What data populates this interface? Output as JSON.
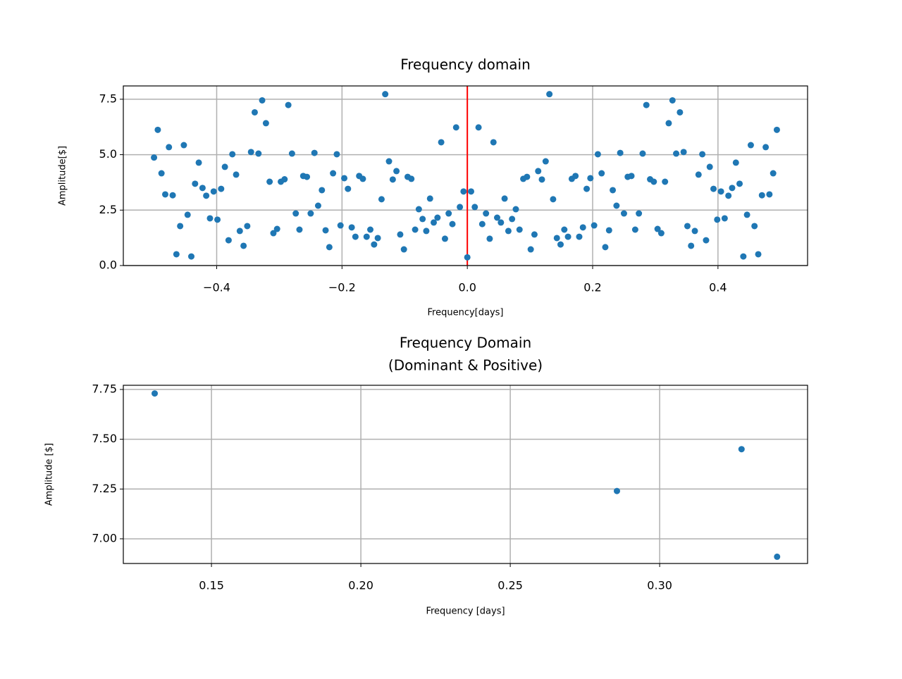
{
  "chart_data": [
    {
      "type": "scatter",
      "title": "Frequency domain",
      "xlabel": "Frequency[days]",
      "ylabel": "Amplitude[$]",
      "color": "#1f77b4",
      "grid": true,
      "vlines": [
        {
          "x": 0,
          "color": "#ff0000"
        }
      ],
      "xlim": [
        -0.549,
        0.543
      ],
      "ylim": [
        0,
        8.1
      ],
      "xticks": [
        {
          "value": -0.4,
          "label": "−0.4"
        },
        {
          "value": -0.2,
          "label": "−0.2"
        },
        {
          "value": 0,
          "label": "0.0"
        },
        0.2,
        0.4
      ],
      "yticks": [
        {
          "value": 0,
          "label": "0.0"
        },
        2.5,
        {
          "value": 5,
          "label": "5.0"
        },
        7.5
      ],
      "x": [
        -0.5,
        -0.494,
        -0.4881,
        -0.4821,
        -0.4762,
        -0.4702,
        -0.4643,
        -0.4583,
        -0.4524,
        -0.4464,
        -0.4405,
        -0.4345,
        -0.4286,
        -0.4226,
        -0.4167,
        -0.4107,
        -0.4048,
        -0.3988,
        -0.3929,
        -0.3869,
        -0.381,
        -0.375,
        -0.369,
        -0.3631,
        -0.3571,
        -0.3512,
        -0.3452,
        -0.3393,
        -0.3333,
        -0.3274,
        -0.3214,
        -0.3155,
        -0.3095,
        -0.3036,
        -0.2976,
        -0.2917,
        -0.2857,
        -0.2798,
        -0.2738,
        -0.2679,
        -0.2619,
        -0.256,
        -0.25,
        -0.244,
        -0.2381,
        -0.2321,
        -0.2262,
        -0.2202,
        -0.2143,
        -0.2083,
        -0.2024,
        -0.1964,
        -0.1905,
        -0.1845,
        -0.1786,
        -0.1726,
        -0.1667,
        -0.1607,
        -0.1548,
        -0.1488,
        -0.1429,
        -0.1369,
        -0.131,
        -0.125,
        -0.119,
        -0.1131,
        -0.1071,
        -0.1012,
        -0.0952,
        -0.0893,
        -0.0833,
        -0.0774,
        -0.0714,
        -0.0655,
        -0.0595,
        -0.0536,
        -0.0476,
        -0.0417,
        -0.0357,
        -0.0298,
        -0.0238,
        -0.0179,
        -0.0119,
        -0.006,
        0,
        0.006,
        0.0119,
        0.0179,
        0.0238,
        0.0298,
        0.0357,
        0.0417,
        0.0476,
        0.0536,
        0.0595,
        0.0655,
        0.0714,
        0.0774,
        0.0833,
        0.0893,
        0.0952,
        0.1012,
        0.1071,
        0.1131,
        0.119,
        0.125,
        0.131,
        0.1369,
        0.1429,
        0.1488,
        0.1548,
        0.1607,
        0.1667,
        0.1726,
        0.1786,
        0.1845,
        0.1905,
        0.1964,
        0.2024,
        0.2083,
        0.2143,
        0.2202,
        0.2262,
        0.2321,
        0.2381,
        0.244,
        0.25,
        0.256,
        0.2619,
        0.2679,
        0.2738,
        0.2798,
        0.2857,
        0.2917,
        0.2976,
        0.3036,
        0.3095,
        0.3155,
        0.3214,
        0.3274,
        0.3333,
        0.3393,
        0.3452,
        0.3512,
        0.3571,
        0.3631,
        0.369,
        0.375,
        0.381,
        0.3869,
        0.3929,
        0.3988,
        0.4048,
        0.4107,
        0.4167,
        0.4226,
        0.4286,
        0.4345,
        0.4405,
        0.4464,
        0.4524,
        0.4583,
        0.4643,
        0.4702,
        0.4762,
        0.4821,
        0.4881,
        0.494
      ],
      "values": [
        4.87,
        6.12,
        4.16,
        3.21,
        5.34,
        3.17,
        0.51,
        1.78,
        5.43,
        2.29,
        0.41,
        3.69,
        4.64,
        3.5,
        3.15,
        2.13,
        3.34,
        2.07,
        3.46,
        4.45,
        1.14,
        5.02,
        4.1,
        1.56,
        0.89,
        1.78,
        5.12,
        6.91,
        5.05,
        7.45,
        6.42,
        3.78,
        1.46,
        1.65,
        3.78,
        3.89,
        7.24,
        5.05,
        2.35,
        1.62,
        4.04,
        4.0,
        2.35,
        5.08,
        2.7,
        3.4,
        1.59,
        0.83,
        4.16,
        5.02,
        1.81,
        3.94,
        3.46,
        1.72,
        1.3,
        4.04,
        3.91,
        1.3,
        1.62,
        0.95,
        1.24,
        2.99,
        7.73,
        4.7,
        3.88,
        4.26,
        1.4,
        0.73,
        4.0,
        3.91,
        1.62,
        2.54,
        2.1,
        1.56,
        3.02,
        1.94,
        2.16,
        5.56,
        1.21,
        2.35,
        1.87,
        6.23,
        2.64,
        3.34,
        0.37,
        3.34,
        2.64,
        6.23,
        1.87,
        2.35,
        1.21,
        5.56,
        2.16,
        1.94,
        3.02,
        1.56,
        2.1,
        2.54,
        1.62,
        3.91,
        4.0,
        0.73,
        1.4,
        4.26,
        3.88,
        4.7,
        7.73,
        2.99,
        1.24,
        0.95,
        1.62,
        1.3,
        3.91,
        4.04,
        1.3,
        1.72,
        3.46,
        3.94,
        1.81,
        5.02,
        4.16,
        0.83,
        1.59,
        3.4,
        2.7,
        5.08,
        2.35,
        4.0,
        4.04,
        1.62,
        2.35,
        5.05,
        7.24,
        3.89,
        3.78,
        1.65,
        1.46,
        3.78,
        6.42,
        7.45,
        5.05,
        6.91,
        5.12,
        1.78,
        0.89,
        1.56,
        4.1,
        5.02,
        1.14,
        4.45,
        3.46,
        2.07,
        3.34,
        2.13,
        3.15,
        3.5,
        4.64,
        3.69,
        0.41,
        2.29,
        5.43,
        1.78,
        0.51,
        3.17,
        5.34,
        3.21,
        4.16,
        6.12
      ]
    },
    {
      "type": "scatter",
      "title": [
        "Frequency Domain",
        "(Dominant & Positive)"
      ],
      "xlabel": "Frequency [days]",
      "ylabel": "Amplitude [$]",
      "color": "#1f77b4",
      "grid": true,
      "xlim": [
        0.1205,
        0.3495
      ],
      "ylim": [
        6.876,
        7.771
      ],
      "xticks": [
        0.15,
        {
          "value": 0.2,
          "label": "0.20"
        },
        0.25,
        {
          "value": 0.3,
          "label": "0.30"
        }
      ],
      "yticks": [
        {
          "value": 7,
          "label": "7.00"
        },
        7.25,
        {
          "value": 7.5,
          "label": "7.50"
        },
        7.75
      ],
      "x": [
        0.131,
        0.2857,
        0.3274,
        0.3393
      ],
      "values": [
        7.73,
        7.24,
        7.45,
        6.91
      ]
    }
  ]
}
